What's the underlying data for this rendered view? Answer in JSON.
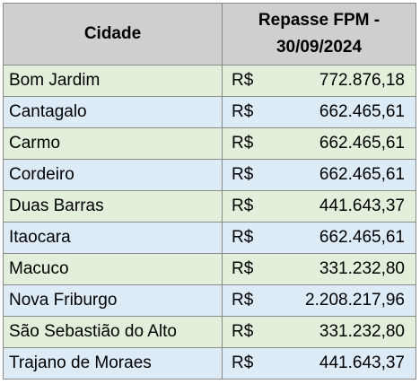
{
  "table": {
    "columns": [
      "Cidade",
      "Repasse FPM - 30/09/2024"
    ],
    "rows": [
      [
        "Bom Jardim",
        "R$",
        "772.876,18"
      ],
      [
        "Cantagalo",
        "R$",
        "662.465,61"
      ],
      [
        "Carmo",
        "R$",
        "662.465,61"
      ],
      [
        "Cordeiro",
        "R$",
        "662.465,61"
      ],
      [
        "Duas Barras",
        "R$",
        "441.643,37"
      ],
      [
        "Itaocara",
        "R$",
        "662.465,61"
      ],
      [
        "Macuco",
        "R$",
        "331.232,80"
      ],
      [
        "Nova Friburgo",
        "R$",
        "2.208.217,96"
      ],
      [
        "São Sebastião do Alto",
        "R$",
        "331.232,80"
      ],
      [
        "Trajano de Moraes",
        "R$",
        "441.643,37"
      ]
    ]
  }
}
